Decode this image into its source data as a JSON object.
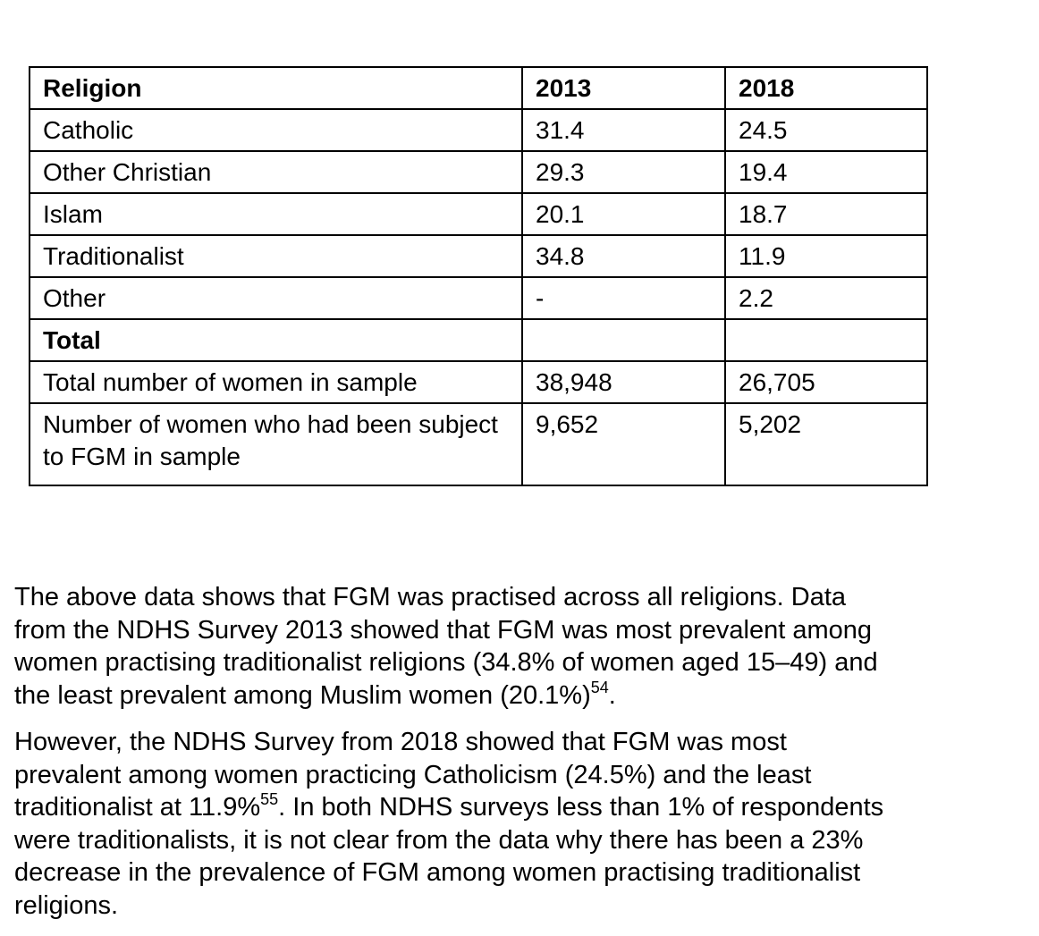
{
  "table": {
    "header": [
      "Religion",
      "2013",
      "2018"
    ],
    "rows": [
      [
        "Catholic",
        "31.4",
        "24.5"
      ],
      [
        "Other Christian",
        "29.3",
        "19.4"
      ],
      [
        "Islam",
        "20.1",
        "18.7"
      ],
      [
        "Traditionalist",
        "34.8",
        "11.9"
      ],
      [
        "Other",
        "-",
        "2.2"
      ]
    ],
    "total_heading": "Total",
    "total_rows": [
      [
        "Total number of women in sample",
        "38,948",
        "26,705"
      ],
      [
        "Number of women who had been subject to FGM in sample",
        "9,652",
        "5,202"
      ]
    ]
  },
  "paragraphs": [
    {
      "lines": [
        {
          "text": "The above data shows that FGM was practised across all religions. Data"
        },
        {
          "text": "from the NDHS Survey 2013 showed that FGM was most prevalent among"
        },
        {
          "text": "women practising traditionalist religions (34.8% of women aged 15–49) and"
        },
        {
          "text": "the least prevalent among Muslim women (20.1%)",
          "footnote": "54",
          "after": "."
        }
      ]
    },
    {
      "lines": [
        {
          "text": "However, the NDHS Survey from 2018 showed that FGM was most"
        },
        {
          "text": "prevalent among women practicing Catholicism (24.5%) and the least"
        },
        {
          "text": "traditionalist at 11.9%",
          "footnote": "55",
          "after": ". In both NDHS surveys less than 1% of respondents"
        },
        {
          "text": "were traditionalists, it is not clear from the data why there has been a 23%"
        },
        {
          "text": "decrease in the prevalence of FGM among women practising traditionalist"
        },
        {
          "text": "religions."
        }
      ]
    }
  ]
}
